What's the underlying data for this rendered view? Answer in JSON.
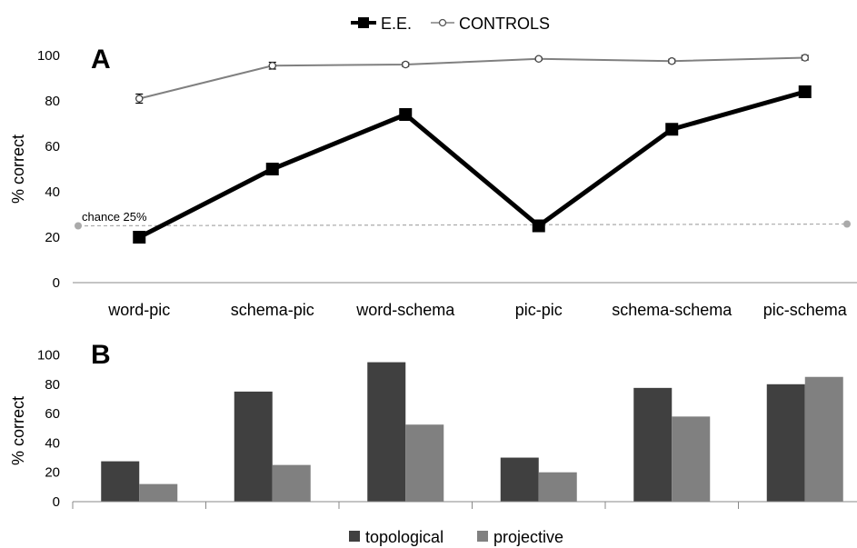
{
  "chart_data": [
    {
      "panel_label": "A",
      "type": "line",
      "categories": [
        "word-pic",
        "schema-pic",
        "word-schema",
        "pic-pic",
        "schema-schema",
        "pic-schema"
      ],
      "series": [
        {
          "name": "E.E.",
          "values": [
            20,
            50,
            74,
            25,
            67.5,
            84
          ],
          "color": "#000000",
          "marker": "filled-square"
        },
        {
          "name": "CONTROLS",
          "values": [
            81,
            95.5,
            96,
            98.5,
            97.5,
            99
          ],
          "color": "#808080",
          "marker": "open-circle",
          "error": [
            2,
            1.5,
            0.8,
            0.6,
            0.8,
            1
          ]
        }
      ],
      "reference_line": {
        "label": "chance 25%",
        "value": 25,
        "color": "#aaaaaa"
      },
      "ylabel": "% correct",
      "ylim": [
        0,
        100
      ],
      "yticks": [
        0,
        20,
        40,
        60,
        80,
        100
      ],
      "legend": {
        "placement": "top-center"
      },
      "grid": false
    },
    {
      "panel_label": "B",
      "type": "bar",
      "categories": [
        "word-pic",
        "schema-pic",
        "word-schema",
        "pic-pic",
        "schema-schema",
        "pic-schema"
      ],
      "series": [
        {
          "name": "topological",
          "values": [
            27.5,
            75,
            95,
            30,
            77.5,
            80
          ],
          "color": "#404040"
        },
        {
          "name": "projective",
          "values": [
            12,
            25,
            52.5,
            20,
            58,
            85
          ],
          "color": "#808080"
        }
      ],
      "ylabel": "% correct",
      "ylim": [
        0,
        100
      ],
      "yticks": [
        0,
        20,
        40,
        60,
        80,
        100
      ],
      "legend": {
        "placement": "bottom-center"
      },
      "grid": false
    }
  ]
}
